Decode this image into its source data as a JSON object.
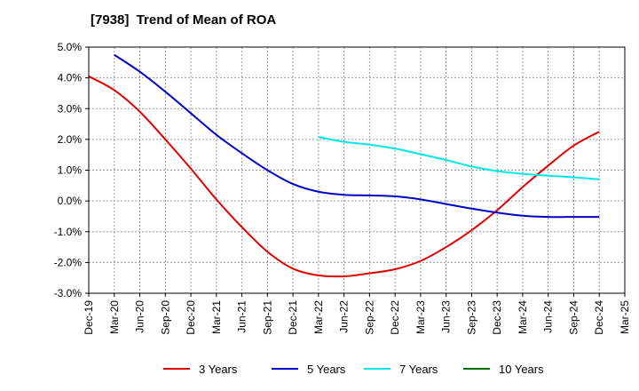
{
  "chart_data": {
    "type": "line",
    "title": "[7938]  Trend of Mean of ROA",
    "xlabel": "",
    "ylabel": "",
    "categories": [
      "Dec-19",
      "Mar-20",
      "Jun-20",
      "Sep-20",
      "Dec-20",
      "Mar-21",
      "Jun-21",
      "Sep-21",
      "Dec-21",
      "Mar-22",
      "Jun-22",
      "Sep-22",
      "Dec-22",
      "Mar-23",
      "Jun-23",
      "Sep-23",
      "Dec-23",
      "Mar-24",
      "Jun-24",
      "Sep-24",
      "Dec-24",
      "Mar-25"
    ],
    "yticks": [
      "5.0%",
      "4.0%",
      "3.0%",
      "2.0%",
      "1.0%",
      "0.0%",
      "-1.0%",
      "-2.0%",
      "-3.0%"
    ],
    "ylim": [
      -3.0,
      5.0
    ],
    "grid": true,
    "legend_position": "bottom",
    "series": [
      {
        "name": "3 Years",
        "color": "#e00000",
        "values": [
          4.05,
          3.6,
          2.9,
          2.0,
          1.05,
          0.05,
          -0.85,
          -1.65,
          -2.2,
          -2.42,
          -2.45,
          -2.35,
          -2.22,
          -1.95,
          -1.5,
          -0.95,
          -0.3,
          0.45,
          1.15,
          1.8,
          2.25,
          null
        ]
      },
      {
        "name": "5 Years",
        "color": "#0000c8",
        "values": [
          null,
          4.75,
          4.2,
          3.55,
          2.85,
          2.15,
          1.55,
          1.0,
          0.55,
          0.3,
          0.2,
          0.18,
          0.15,
          0.05,
          -0.1,
          -0.25,
          -0.38,
          -0.48,
          -0.52,
          -0.52,
          -0.52,
          null
        ]
      },
      {
        "name": "7 Years",
        "color": "#00e8e8",
        "values": [
          null,
          null,
          null,
          null,
          null,
          null,
          null,
          null,
          null,
          2.08,
          1.92,
          1.83,
          1.7,
          1.52,
          1.33,
          1.12,
          0.97,
          0.88,
          0.82,
          0.77,
          0.7,
          null
        ]
      },
      {
        "name": "10 Years",
        "color": "#007000",
        "values": [
          null,
          null,
          null,
          null,
          null,
          null,
          null,
          null,
          null,
          null,
          null,
          null,
          null,
          null,
          null,
          null,
          null,
          null,
          null,
          null,
          null,
          null
        ]
      }
    ]
  }
}
